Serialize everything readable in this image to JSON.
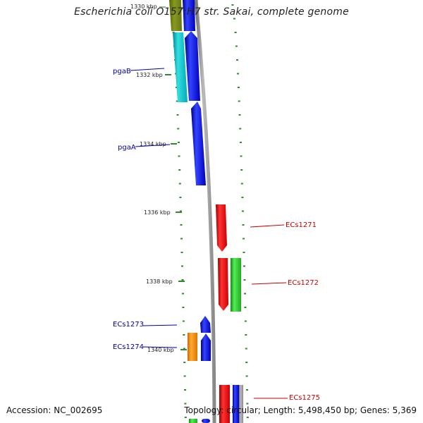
{
  "title": "Escherichia coli O157:H7 str. Sakai, complete genome",
  "footer": {
    "accession": "Accession: NC_002695",
    "summary": "Topology: circular; Length: 5,498,450 bp; Genes: 5,369"
  },
  "colors": {
    "reverse_strand_gene": "#0000ee",
    "forward_strand_gene": "#ee0000",
    "rna_feature": "#22cc22",
    "pseudo_feature": "#00bbcc",
    "other_feature": "#ff9900",
    "backbone": "#999999",
    "tick": "#2e8b2e",
    "reverse_label": "#0000aa",
    "forward_label": "#cc0000"
  },
  "ticks": [
    {
      "label": "1330 kbp",
      "faded": true
    },
    {
      "label": "1332 kbp",
      "faded": false
    },
    {
      "label": "1334 kbp",
      "faded": false
    },
    {
      "label": "1336 kbp",
      "faded": false
    },
    {
      "label": "1338 kbp",
      "faded": false
    },
    {
      "label": "1340 kbp",
      "faded": false
    }
  ],
  "gene_labels": [
    {
      "name": "pgaB",
      "strand": "reverse"
    },
    {
      "name": "pgaA",
      "strand": "reverse"
    },
    {
      "name": "ECs1271",
      "strand": "forward"
    },
    {
      "name": "ECs1272",
      "strand": "forward"
    },
    {
      "name": "ECs1273",
      "strand": "reverse"
    },
    {
      "name": "ECs1274",
      "strand": "reverse"
    },
    {
      "name": "ECs1275",
      "strand": "forward"
    }
  ]
}
